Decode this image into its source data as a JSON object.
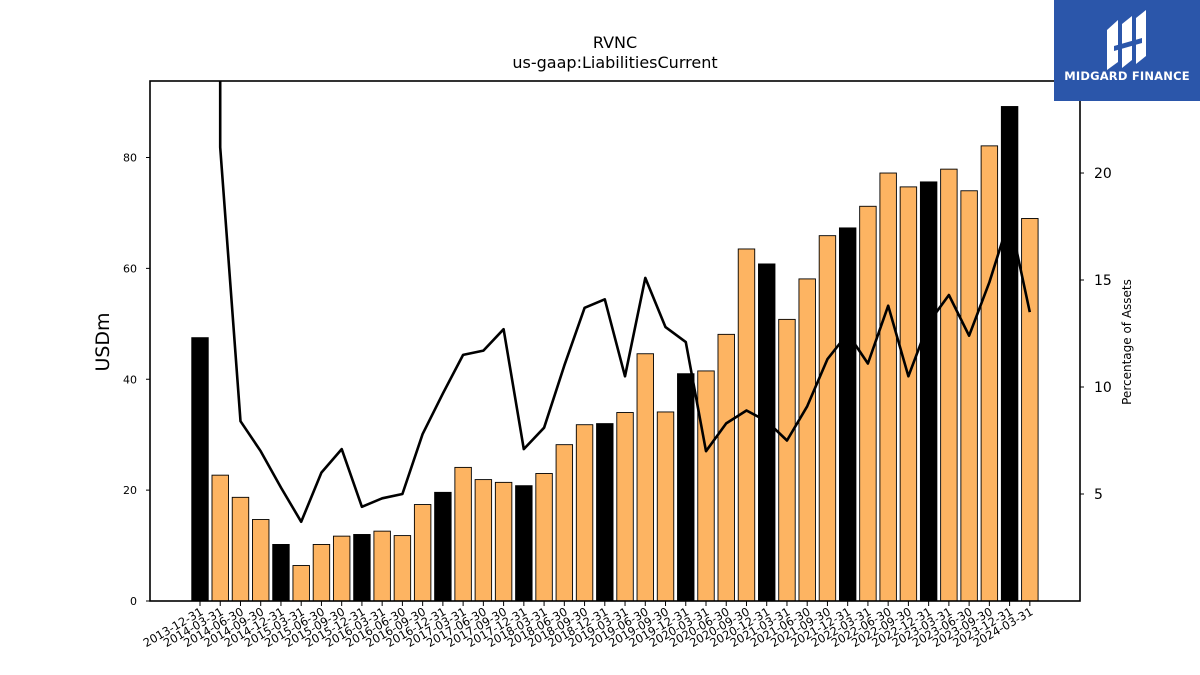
{
  "logo": {
    "text": "MIDGARD FINANCE",
    "icon": "midgard-logo-icon",
    "background": "#2b56aa"
  },
  "chart_data": {
    "type": "bar",
    "title": "RVNC",
    "subtitle": "us-gaap:LiabilitiesCurrent",
    "ylabel": "USDm",
    "y2label": "Percentage of Assets",
    "ylim": [
      0,
      93.8
    ],
    "y2lim": [
      0,
      24.3
    ],
    "yticks": [
      0,
      20,
      40,
      60,
      80
    ],
    "y2ticks": [
      5,
      10,
      15,
      20
    ],
    "grid": false,
    "colors": {
      "bar": "#fdb462",
      "bar_highlight": "#000000",
      "line": "#000000"
    },
    "categories": [
      "2013-12-31",
      "2014-03-31",
      "2014-06-30",
      "2014-09-30",
      "2014-12-31",
      "2015-03-31",
      "2015-06-30",
      "2015-09-30",
      "2015-12-31",
      "2016-03-31",
      "2016-06-30",
      "2016-09-30",
      "2016-12-31",
      "2017-03-31",
      "2017-06-30",
      "2017-09-30",
      "2017-12-31",
      "2018-03-31",
      "2018-06-30",
      "2018-09-30",
      "2018-12-31",
      "2019-03-31",
      "2019-06-30",
      "2019-09-30",
      "2019-12-31",
      "2020-03-31",
      "2020-06-30",
      "2020-09-30",
      "2020-12-31",
      "2021-03-31",
      "2021-06-30",
      "2021-09-30",
      "2021-12-31",
      "2022-03-31",
      "2022-06-30",
      "2022-09-30",
      "2022-12-31",
      "2023-03-31",
      "2023-06-30",
      "2023-09-30",
      "2023-12-31",
      "2024-03-31"
    ],
    "series": [
      {
        "type": "bar",
        "axis": "left",
        "values": [
          47.5,
          22.7,
          18.7,
          14.7,
          10.2,
          6.4,
          10.2,
          11.7,
          12.0,
          12.6,
          11.8,
          17.4,
          19.6,
          24.1,
          21.9,
          21.4,
          20.8,
          23.0,
          28.2,
          31.8,
          32.0,
          34.0,
          44.6,
          34.1,
          41.0,
          41.5,
          48.1,
          63.5,
          60.8,
          50.8,
          58.1,
          65.9,
          67.3,
          71.2,
          77.2,
          74.7,
          75.6,
          77.9,
          74.0,
          82.1,
          89.2,
          69.0
        ],
        "highlight": [
          true,
          false,
          false,
          false,
          true,
          false,
          false,
          false,
          true,
          false,
          false,
          false,
          true,
          false,
          false,
          false,
          true,
          false,
          false,
          false,
          true,
          false,
          false,
          false,
          true,
          false,
          false,
          false,
          true,
          false,
          false,
          false,
          true,
          false,
          false,
          false,
          true,
          false,
          false,
          false,
          true,
          false
        ]
      },
      {
        "type": "line",
        "axis": "right",
        "values": [
          null,
          21.2,
          8.4,
          7.0,
          5.3,
          3.7,
          6.0,
          7.1,
          4.4,
          4.8,
          5.0,
          7.8,
          9.7,
          11.5,
          11.7,
          12.7,
          7.1,
          8.1,
          11.0,
          13.7,
          14.1,
          10.5,
          15.1,
          12.8,
          12.1,
          7.0,
          8.3,
          8.9,
          8.4,
          7.5,
          9.1,
          11.3,
          12.5,
          11.1,
          13.8,
          10.5,
          13.0,
          14.3,
          12.4,
          14.9,
          17.9,
          13.5
        ]
      }
    ],
    "line_overflow_top": true
  }
}
